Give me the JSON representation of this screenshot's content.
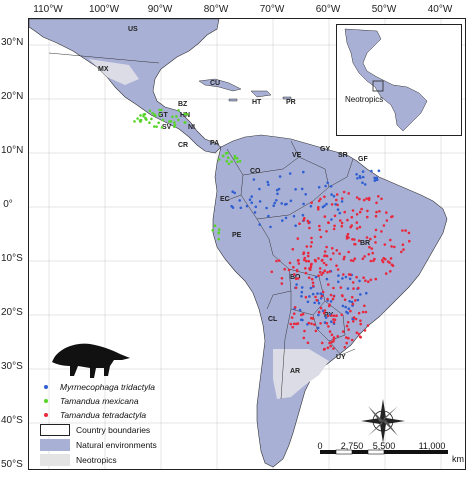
{
  "lon_ticks": [
    "110°W",
    "100°W",
    "90°W",
    "80°W",
    "70°W",
    "60°W",
    "50°W",
    "40°W"
  ],
  "lat_ticks": [
    "30°N",
    "20°N",
    "10°N",
    "0°",
    "10°S",
    "20°S",
    "30°S",
    "40°S",
    "50°S"
  ],
  "countries": [
    "US",
    "MX",
    "CU",
    "HT",
    "PR",
    "BZ",
    "GT",
    "HN",
    "SV",
    "NI",
    "CR",
    "PA",
    "VE",
    "GY",
    "SR",
    "GF",
    "CO",
    "EC",
    "PE",
    "BR",
    "BO",
    "PY",
    "CL",
    "AR",
    "UY"
  ],
  "inset": {
    "label": "Neotropics"
  },
  "legend": {
    "species": [
      {
        "name": "Myrmecophaga tridactyla",
        "color": "#2f5fd0"
      },
      {
        "name": "Tamandua mexicana",
        "color": "#57d42a"
      },
      {
        "name": "Tamandua tetradactyla",
        "color": "#e8283c"
      }
    ],
    "areas": [
      {
        "name": "Country boundaries",
        "fill": "#ffffff"
      },
      {
        "name": "Natural environments",
        "fill": "#a9b0d6"
      },
      {
        "name": "Neotropics",
        "fill": "#e4e4e4"
      }
    ]
  },
  "scale": {
    "labels": [
      "0",
      "2,750",
      "5,500",
      "11,000"
    ],
    "unit": "km"
  },
  "colors": {
    "natural": "#a9b0d6",
    "altered": "#dcdce6",
    "ocean": "#ffffff"
  },
  "compass": "compass-rose-icon"
}
